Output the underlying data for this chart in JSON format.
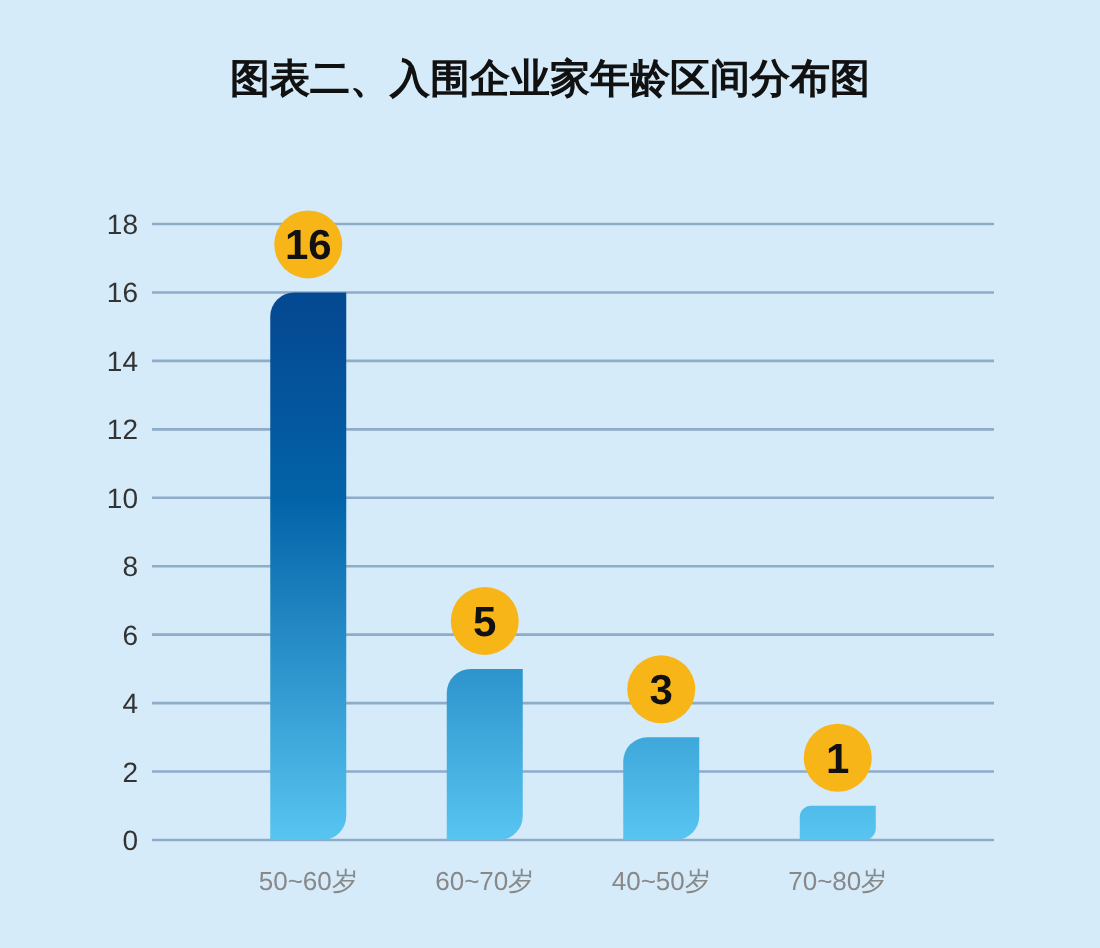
{
  "chart_data": {
    "type": "bar",
    "title": "图表二、入围企业家年龄区间分布图",
    "categories": [
      "50~60岁",
      "60~70岁",
      "40~50岁",
      "70~80岁"
    ],
    "values": [
      16,
      5,
      3,
      1
    ],
    "ylim": [
      0,
      18
    ],
    "yticks": [
      0,
      2,
      4,
      6,
      8,
      10,
      12,
      14,
      16,
      18
    ],
    "grid": "y",
    "data_labels": true
  }
}
